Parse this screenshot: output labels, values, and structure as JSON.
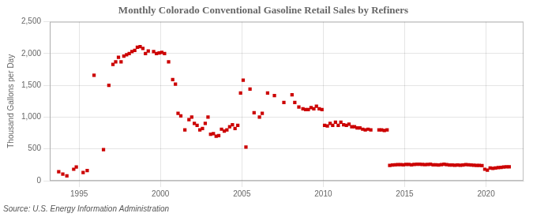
{
  "chart_data": {
    "type": "scatter",
    "title": "Monthly Colorado Conventional Gasoline Retail Sales by Refiners",
    "y_label": "Thousand Gallons per Day",
    "annotations": [
      "Source: U.S. Energy Information Administration"
    ],
    "color": "#cc0000",
    "marker": "square",
    "grid": true,
    "xlim": [
      1993.2,
      2022.3
    ],
    "xticks": [
      1995,
      2000,
      2005,
      2010,
      2015,
      2020
    ],
    "ylim": [
      0,
      2500
    ],
    "yticks": [
      0,
      500,
      {
        "value": 1000,
        "label": "1,000"
      },
      {
        "value": 1500,
        "label": "1,500"
      },
      {
        "value": 2000,
        "label": "2,000"
      },
      {
        "value": 2500,
        "label": "2,500"
      }
    ],
    "x": [
      1993.75,
      1994.0,
      1994.25,
      1994.67,
      1994.83,
      1995.25,
      1995.5,
      1995.92,
      1996.5,
      1996.83,
      1997.08,
      1997.25,
      1997.42,
      1997.58,
      1997.75,
      1997.92,
      1998.08,
      1998.25,
      1998.42,
      1998.58,
      1998.75,
      1998.92,
      1999.08,
      1999.25,
      1999.58,
      1999.75,
      1999.92,
      2000.08,
      2000.25,
      2000.5,
      2000.75,
      2000.92,
      2001.08,
      2001.25,
      2001.5,
      2001.75,
      2001.92,
      2002.08,
      2002.25,
      2002.42,
      2002.58,
      2002.75,
      2002.92,
      2003.08,
      2003.25,
      2003.42,
      2003.58,
      2003.75,
      2003.92,
      2004.08,
      2004.25,
      2004.42,
      2004.58,
      2004.75,
      2004.92,
      2005.08,
      2005.25,
      2005.5,
      2005.75,
      2006.08,
      2006.25,
      2006.58,
      2007.0,
      2007.58,
      2008.08,
      2008.25,
      2008.5,
      2008.75,
      2008.92,
      2009.08,
      2009.25,
      2009.42,
      2009.58,
      2009.75,
      2009.92,
      2010.08,
      2010.25,
      2010.42,
      2010.58,
      2010.75,
      2010.92,
      2011.08,
      2011.25,
      2011.42,
      2011.58,
      2011.75,
      2011.92,
      2012.08,
      2012.25,
      2012.42,
      2012.58,
      2012.75,
      2012.92,
      2013.42,
      2013.58,
      2013.75,
      2013.92,
      2014.08,
      2014.25,
      2014.42,
      2014.58,
      2014.75,
      2014.92,
      2015.08,
      2015.25,
      2015.42,
      2015.58,
      2015.75,
      2015.92,
      2016.08,
      2016.25,
      2016.42,
      2016.58,
      2016.75,
      2016.92,
      2017.08,
      2017.25,
      2017.42,
      2017.58,
      2017.75,
      2017.92,
      2018.08,
      2018.25,
      2018.42,
      2018.58,
      2018.75,
      2018.92,
      2019.08,
      2019.25,
      2019.42,
      2019.58,
      2019.75,
      2019.92,
      2020.08,
      2020.25,
      2020.42,
      2020.58,
      2020.75,
      2020.92,
      2021.08,
      2021.25,
      2021.42
    ],
    "values": [
      140,
      105,
      75,
      180,
      215,
      130,
      160,
      1660,
      490,
      1500,
      1830,
      1870,
      1940,
      1870,
      1960,
      1980,
      2000,
      2030,
      2050,
      2100,
      2110,
      2080,
      2000,
      2040,
      2030,
      2000,
      2010,
      2020,
      2000,
      1870,
      1590,
      1520,
      1060,
      1020,
      800,
      960,
      1000,
      900,
      870,
      800,
      820,
      900,
      1000,
      730,
      740,
      700,
      710,
      810,
      780,
      800,
      850,
      880,
      820,
      870,
      1380,
      1580,
      530,
      1440,
      1070,
      1000,
      1060,
      1380,
      1340,
      1230,
      1350,
      1230,
      1160,
      1130,
      1120,
      1120,
      1150,
      1130,
      1170,
      1130,
      1120,
      870,
      860,
      900,
      870,
      920,
      870,
      920,
      880,
      870,
      890,
      850,
      850,
      830,
      830,
      810,
      800,
      810,
      800,
      800,
      800,
      790,
      800,
      240,
      248,
      250,
      252,
      252,
      250,
      255,
      255,
      250,
      255,
      258,
      258,
      255,
      252,
      255,
      258,
      250,
      250,
      248,
      252,
      258,
      252,
      248,
      248,
      245,
      248,
      245,
      248,
      252,
      250,
      248,
      245,
      242,
      240,
      238,
      180,
      165,
      200,
      195,
      200,
      205,
      210,
      215,
      220,
      218
    ]
  }
}
